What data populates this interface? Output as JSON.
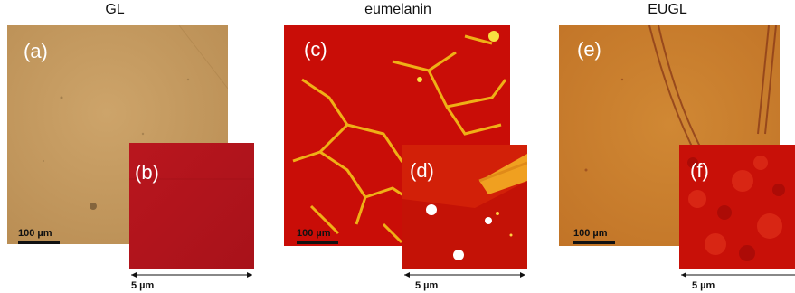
{
  "titles": {
    "gl": "GL",
    "eumelanin": "eumelanin",
    "eugl": "EUGL"
  },
  "panels": {
    "a": {
      "label": "(a)",
      "color": "#c49a5c"
    },
    "b": {
      "label": "(b)",
      "color": "#b3141c"
    },
    "c": {
      "label": "(c)",
      "color": "#c40808"
    },
    "d": {
      "label": "(d)",
      "color": "#d01808"
    },
    "e": {
      "label": "(e)",
      "color": "#c8782a"
    },
    "f": {
      "label": "(f)",
      "color": "#c81008"
    }
  },
  "scale_bars": {
    "large": "100 µm",
    "small": "5 µm"
  }
}
